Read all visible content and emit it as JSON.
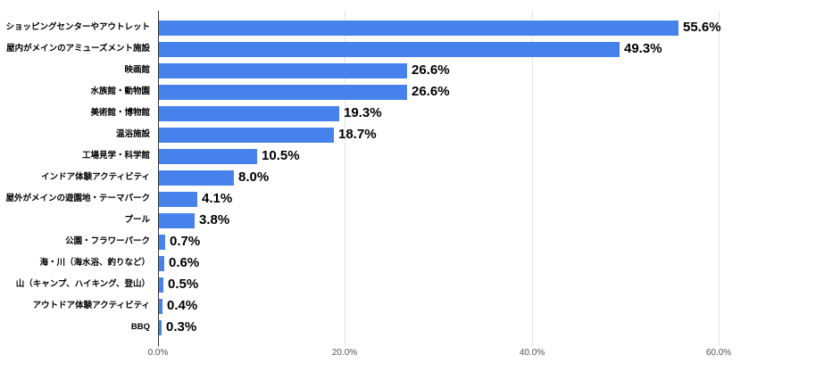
{
  "chart_data": {
    "type": "bar",
    "orientation": "horizontal",
    "title": "",
    "xlabel": "",
    "ylabel": "",
    "xlim": [
      0,
      60
    ],
    "grid": true,
    "legend_position": "none",
    "categories": [
      "ショッピングセンターやアウトレット",
      "屋内がメインのアミューズメント施設",
      "映画館",
      "水族館・動物園",
      "美術館・博物館",
      "温浴施設",
      "工場見学・科学館",
      "インドア体験アクティビティ",
      "屋外がメインの遊園地・テーマパーク",
      "プール",
      "公園・フラワーパーク",
      "海・川（海水浴、釣りなど）",
      "山（キャンプ、ハイキング、登山）",
      "アウトドア体験アクティビティ",
      "BBQ"
    ],
    "values": [
      55.6,
      49.3,
      26.6,
      26.6,
      19.3,
      18.7,
      10.5,
      8.0,
      4.1,
      3.8,
      0.7,
      0.6,
      0.5,
      0.4,
      0.3
    ],
    "value_labels": [
      "55.6%",
      "49.3%",
      "26.6%",
      "26.6%",
      "19.3%",
      "18.7%",
      "10.5%",
      "8.0%",
      "4.1%",
      "3.8%",
      "0.7%",
      "0.6%",
      "0.5%",
      "0.4%",
      "0.3%"
    ],
    "x_tick_values": [
      0,
      20,
      40,
      60
    ],
    "x_tick_labels": [
      "0.0%",
      "20.0%",
      "40.0%",
      "60.0%"
    ],
    "colors": {
      "bar": "#4782EC",
      "gridline": "#e3e3e3",
      "axis_line": "#333333",
      "tick_text": "#555555",
      "value_text": "#000000",
      "category_text": "#000000",
      "background": "#ffffff"
    }
  }
}
